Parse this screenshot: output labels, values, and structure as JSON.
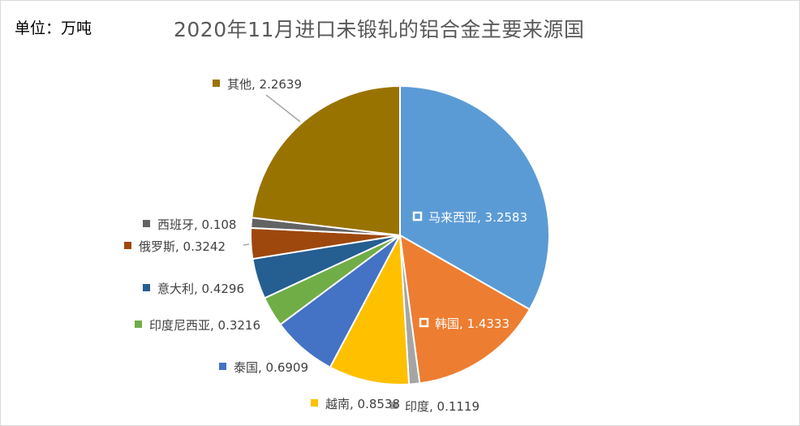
{
  "header": {
    "unit": "单位：万吨",
    "title": "2020年11月进口未锻轧的铝合金主要来源国"
  },
  "chart_data": {
    "type": "pie",
    "title": "2020年11月进口未锻轧的铝合金主要来源国",
    "unit": "单位：万吨",
    "start_angle_deg": 0,
    "direction": "clockwise",
    "slices": [
      {
        "label": "马来西亚",
        "value": 3.2583,
        "color": "#5b9bd5"
      },
      {
        "label": "韩国",
        "value": 1.4333,
        "color": "#ed7d31"
      },
      {
        "label": "印度",
        "value": 0.1119,
        "color": "#a5a5a5"
      },
      {
        "label": "越南",
        "value": 0.8538,
        "color": "#ffc000"
      },
      {
        "label": "泰国",
        "value": 0.6909,
        "color": "#4472c4"
      },
      {
        "label": "印度尼西亚",
        "value": 0.3216,
        "color": "#70ad47"
      },
      {
        "label": "意大利",
        "value": 0.4296,
        "color": "#255e91"
      },
      {
        "label": "俄罗斯",
        "value": 0.3242,
        "color": "#9e480e"
      },
      {
        "label": "西班牙",
        "value": 0.108,
        "color": "#636363"
      },
      {
        "label": "其他",
        "value": 2.2639,
        "color": "#997300"
      }
    ]
  }
}
